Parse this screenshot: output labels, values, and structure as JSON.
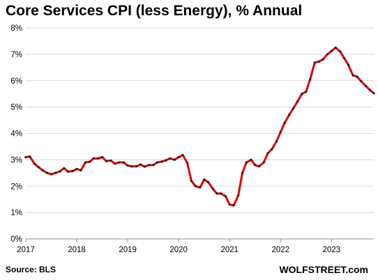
{
  "chart_data": {
    "type": "line",
    "title": "Core Services CPI (less Energy), % Annual",
    "xlabel": "",
    "ylabel": "",
    "ylim": [
      0,
      8
    ],
    "xlim": [
      2017,
      2023.83
    ],
    "grid": "horizontal",
    "x_ticks": [
      "2017",
      "2018",
      "2019",
      "2020",
      "2021",
      "2022",
      "2023"
    ],
    "y_ticks": [
      "0%",
      "1%",
      "2%",
      "3%",
      "4%",
      "5%",
      "6%",
      "7%",
      "8%"
    ],
    "line_color": "#e00000",
    "marker_color": "#222222",
    "series": [
      {
        "x": [
          2017.0,
          2017.08,
          2017.17,
          2017.25,
          2017.33,
          2017.42,
          2017.5,
          2017.58,
          2017.67,
          2017.75,
          2017.83,
          2017.92,
          2018.0,
          2018.08,
          2018.17,
          2018.25,
          2018.33,
          2018.42,
          2018.5,
          2018.58,
          2018.67,
          2018.75,
          2018.83,
          2018.92,
          2019.0,
          2019.08,
          2019.17,
          2019.25,
          2019.33,
          2019.42,
          2019.5,
          2019.58,
          2019.67,
          2019.75,
          2019.83,
          2019.92,
          2020.0,
          2020.08,
          2020.17,
          2020.25,
          2020.33,
          2020.42,
          2020.5,
          2020.58,
          2020.67,
          2020.75,
          2020.83,
          2020.92,
          2021.0,
          2021.08,
          2021.17,
          2021.25,
          2021.33,
          2021.42,
          2021.5,
          2021.58,
          2021.67,
          2021.75,
          2021.83,
          2021.92,
          2022.0,
          2022.08,
          2022.17,
          2022.25,
          2022.33,
          2022.42,
          2022.5,
          2022.58,
          2022.67,
          2022.75,
          2022.83,
          2022.92,
          2023.0,
          2023.08,
          2023.17,
          2023.25,
          2023.33,
          2023.42,
          2023.5,
          2023.58,
          2023.67,
          2023.75,
          2023.83
        ],
        "y": [
          3.1,
          3.12,
          2.85,
          2.72,
          2.6,
          2.5,
          2.45,
          2.5,
          2.56,
          2.68,
          2.55,
          2.57,
          2.65,
          2.6,
          2.9,
          2.92,
          3.05,
          3.05,
          3.1,
          2.95,
          2.97,
          2.85,
          2.9,
          2.9,
          2.78,
          2.75,
          2.75,
          2.82,
          2.74,
          2.8,
          2.8,
          2.9,
          2.93,
          2.98,
          3.05,
          3.0,
          3.1,
          3.18,
          2.88,
          2.2,
          2.0,
          1.95,
          2.25,
          2.15,
          1.9,
          1.72,
          1.72,
          1.62,
          1.3,
          1.27,
          1.65,
          2.5,
          2.9,
          3.0,
          2.8,
          2.75,
          2.9,
          3.25,
          3.4,
          3.7,
          4.05,
          4.4,
          4.7,
          4.95,
          5.2,
          5.5,
          5.58,
          6.05,
          6.68,
          6.72,
          6.8,
          7.0,
          7.12,
          7.25,
          7.1,
          6.85,
          6.6,
          6.2,
          6.15,
          5.98,
          5.8,
          5.65,
          5.52
        ]
      }
    ]
  },
  "source": "Source: BLS",
  "brand": "WOLFSTREET.com"
}
